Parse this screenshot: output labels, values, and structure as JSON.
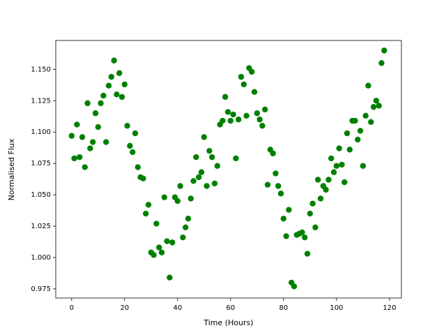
{
  "chart_data": {
    "type": "scatter",
    "x_label": "Time (Hours)",
    "y_label": "Normalised Flux",
    "color": "#008000",
    "x": [
      0,
      1,
      2,
      3,
      4,
      5,
      6,
      7,
      8,
      9,
      10,
      11,
      12,
      13,
      14,
      15,
      16,
      17,
      18,
      19,
      20,
      21,
      22,
      23,
      24,
      25,
      26,
      27,
      28,
      29,
      30,
      31,
      32,
      33,
      34,
      35,
      36,
      37,
      38,
      39,
      40,
      41,
      42,
      43,
      44,
      45,
      46,
      47,
      48,
      49,
      50,
      51,
      52,
      53,
      54,
      55,
      56,
      57,
      58,
      59,
      60,
      61,
      62,
      63,
      64,
      65,
      66,
      67,
      68,
      69,
      70,
      71,
      72,
      73,
      74,
      75,
      76,
      77,
      78,
      79,
      80,
      81,
      82,
      83,
      84,
      85,
      86,
      87,
      88,
      89,
      90,
      91,
      92,
      93,
      94,
      95,
      96,
      97,
      98,
      99,
      100,
      101,
      102,
      103,
      104,
      105,
      106,
      107,
      108,
      109,
      110,
      111,
      112,
      113,
      114,
      115,
      116,
      117,
      118
    ],
    "values": [
      1.097,
      1.079,
      1.106,
      1.08,
      1.096,
      1.072,
      1.123,
      1.087,
      1.092,
      1.115,
      1.104,
      1.123,
      1.129,
      1.092,
      1.137,
      1.144,
      1.157,
      1.13,
      1.147,
      1.128,
      1.138,
      1.105,
      1.089,
      1.084,
      1.099,
      1.072,
      1.064,
      1.063,
      1.035,
      1.042,
      1.004,
      1.002,
      1.027,
      1.008,
      1.004,
      1.048,
      1.013,
      0.984,
      1.012,
      1.048,
      1.045,
      1.057,
      1.016,
      1.024,
      1.031,
      1.047,
      1.061,
      1.08,
      1.064,
      1.068,
      1.096,
      1.057,
      1.085,
      1.08,
      1.059,
      1.073,
      1.106,
      1.109,
      1.128,
      1.116,
      1.109,
      1.114,
      1.079,
      1.11,
      1.144,
      1.138,
      1.113,
      1.151,
      1.148,
      1.132,
      1.115,
      1.11,
      1.105,
      1.118,
      1.058,
      1.086,
      1.083,
      1.067,
      1.057,
      1.051,
      1.031,
      1.017,
      1.038,
      0.98,
      0.977,
      1.018,
      1.019,
      1.02,
      1.016,
      1.003,
      1.035,
      1.043,
      1.024,
      1.062,
      1.047,
      1.057,
      1.054,
      1.062,
      1.079,
      1.068,
      1.073,
      1.087,
      1.074,
      1.06,
      1.099,
      1.086,
      1.109,
      1.109,
      1.094,
      1.101,
      1.073,
      1.113,
      1.137,
      1.108,
      1.12,
      1.125,
      1.121,
      1.155,
      1.165
    ],
    "xlim": [
      -6,
      124.5
    ],
    "ylim": [
      0.9677,
      1.173
    ],
    "xticks": [
      0,
      20,
      40,
      60,
      80,
      100,
      120
    ],
    "yticks": [
      0.975,
      {
        "value": 1.0,
        "label": "1.000"
      },
      1.025,
      {
        "value": 1.05,
        "label": "1.050"
      },
      1.075,
      {
        "value": 1.1,
        "label": "1.100"
      },
      1.125,
      {
        "value": 1.15,
        "label": "1.150"
      }
    ]
  }
}
